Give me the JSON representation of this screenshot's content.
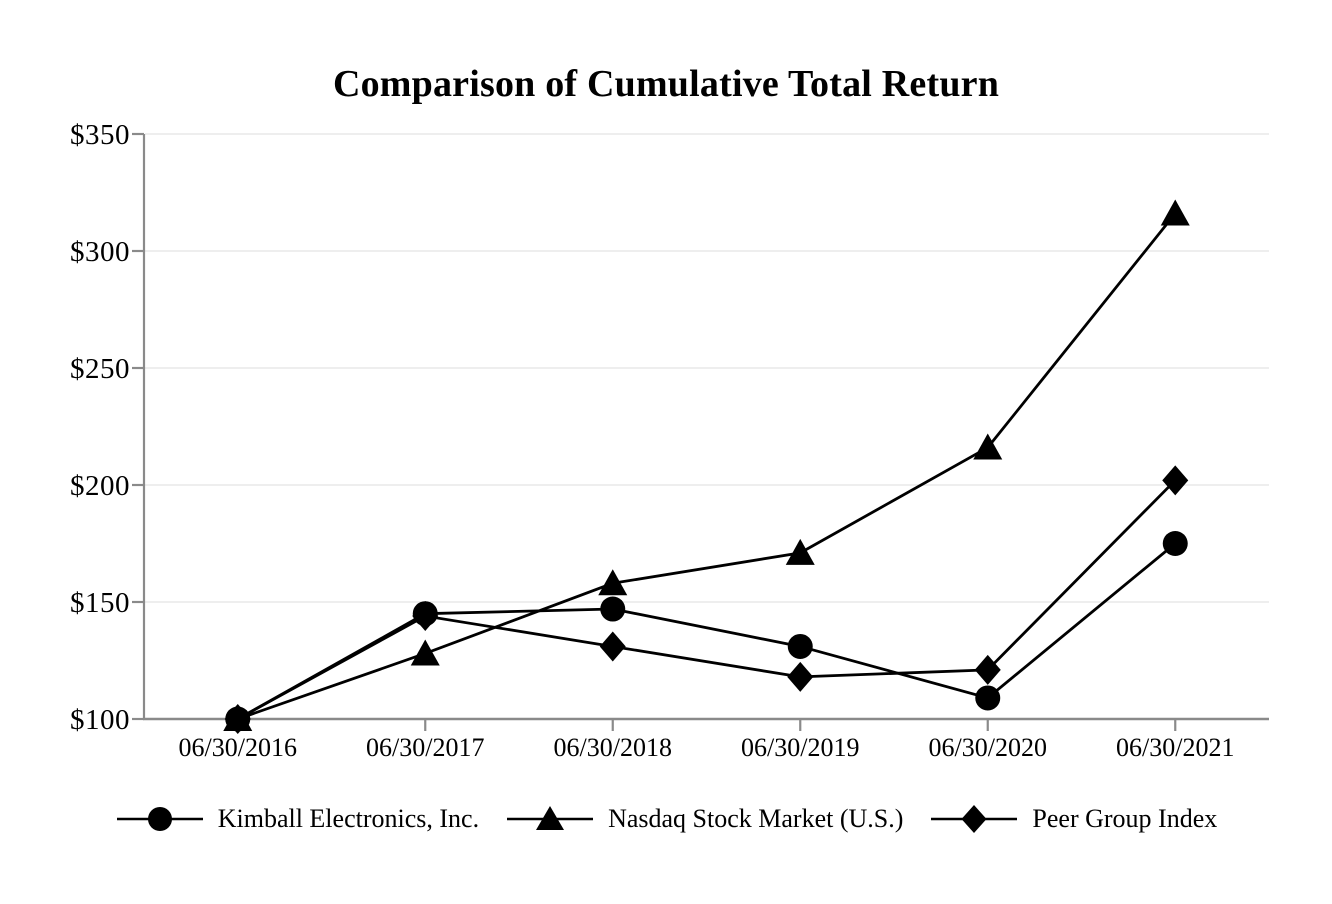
{
  "title": "Comparison of Cumulative Total Return",
  "chart_data": {
    "type": "line",
    "title": "Comparison of Cumulative Total Return",
    "categories": [
      "06/30/2016",
      "06/30/2017",
      "06/30/2018",
      "06/30/2019",
      "06/30/2020",
      "06/30/2021"
    ],
    "series": [
      {
        "name": "Kimball Electronics, Inc.",
        "marker": "circle",
        "values": [
          100,
          145,
          147,
          131,
          109,
          175
        ]
      },
      {
        "name": "Nasdaq Stock Market (U.S.)",
        "marker": "triangle",
        "values": [
          100,
          128,
          158,
          171,
          216,
          316
        ]
      },
      {
        "name": "Peer Group Index",
        "marker": "diamond",
        "values": [
          100,
          144,
          131,
          118,
          121,
          202
        ]
      }
    ],
    "xlabel": "",
    "ylabel": "",
    "ylim": [
      100,
      350
    ],
    "y_ticks": [
      {
        "value": 100,
        "label": "$100"
      },
      {
        "value": 150,
        "label": "$150"
      },
      {
        "value": 200,
        "label": "$200"
      },
      {
        "value": 250,
        "label": "$250"
      },
      {
        "value": 300,
        "label": "$300"
      },
      {
        "value": 350,
        "label": "$350"
      }
    ],
    "grid": "horizontal gridlines on",
    "legend_position": "bottom"
  },
  "legend": {
    "items": [
      {
        "label": "Kimball Electronics, Inc.",
        "marker": "circle"
      },
      {
        "label": "Nasdaq Stock Market (U.S.)",
        "marker": "triangle"
      },
      {
        "label": "Peer Group Index",
        "marker": "diamond"
      }
    ]
  },
  "colors": {
    "background": "#ffffff",
    "series": "#000000",
    "axis": "#8a8a8a",
    "gridline": "#e9e9e9",
    "text": "#000000"
  }
}
